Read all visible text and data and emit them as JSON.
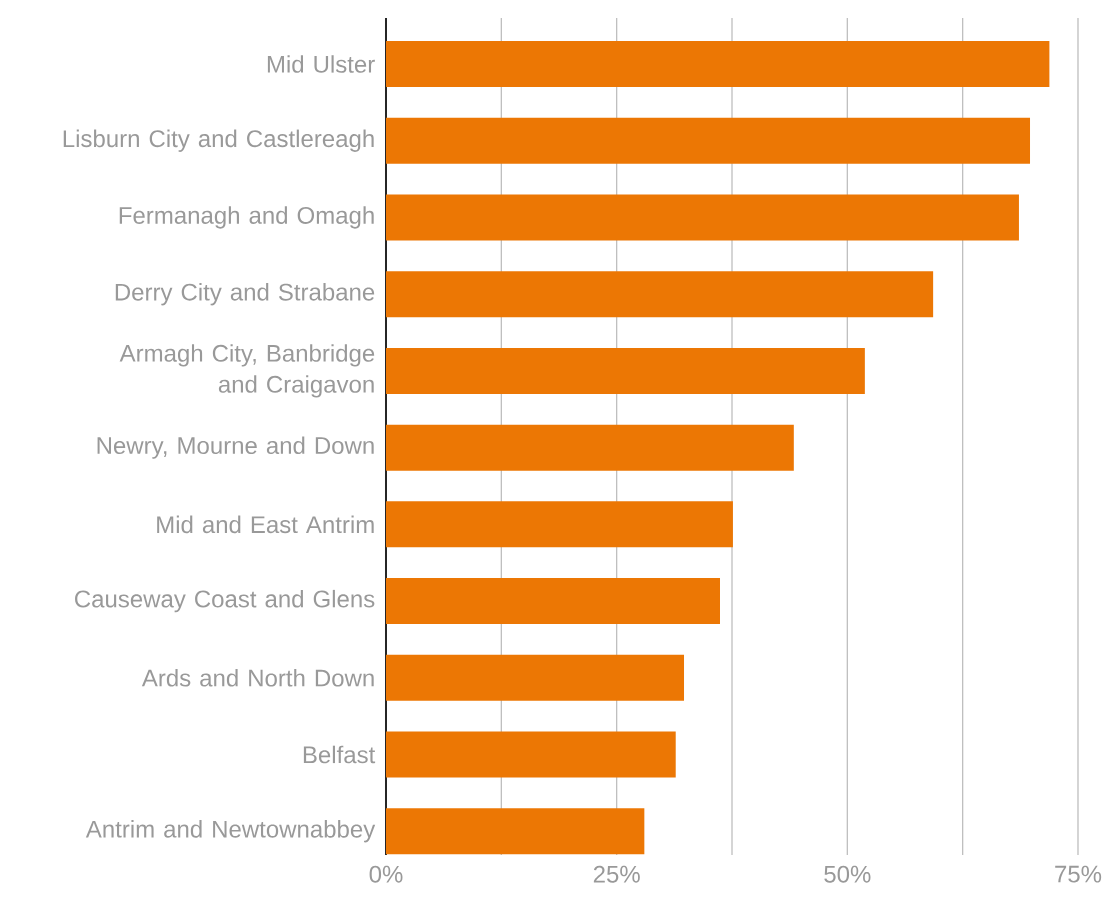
{
  "chart_data": {
    "type": "bar",
    "orientation": "horizontal",
    "categories": [
      "Mid Ulster",
      "Lisburn City and Castlereagh",
      "Fermanagh and Omagh",
      "Derry City and Strabane",
      "Armagh City, Banbridge and Craigavon",
      "Newry, Mourne and Down",
      "Mid and East Antrim",
      "Causeway Coast and Glens",
      "Ards and North Down",
      "Belfast",
      "Antrim and Newtownabbey"
    ],
    "values": [
      71.9,
      69.8,
      68.6,
      59.3,
      51.9,
      44.2,
      37.6,
      36.2,
      32.3,
      31.4,
      28.0
    ],
    "color": "#ec7704",
    "xlim": [
      0,
      75
    ],
    "xticks": [
      {
        "value": 0,
        "label": "0%"
      },
      {
        "value": 12.5,
        "label": null
      },
      {
        "value": 25,
        "label": "25%"
      },
      {
        "value": 37.5,
        "label": null
      },
      {
        "value": 50,
        "label": "50%"
      },
      {
        "value": 62.5,
        "label": null
      },
      {
        "value": 75,
        "label": "75%"
      }
    ],
    "grid": "x"
  }
}
